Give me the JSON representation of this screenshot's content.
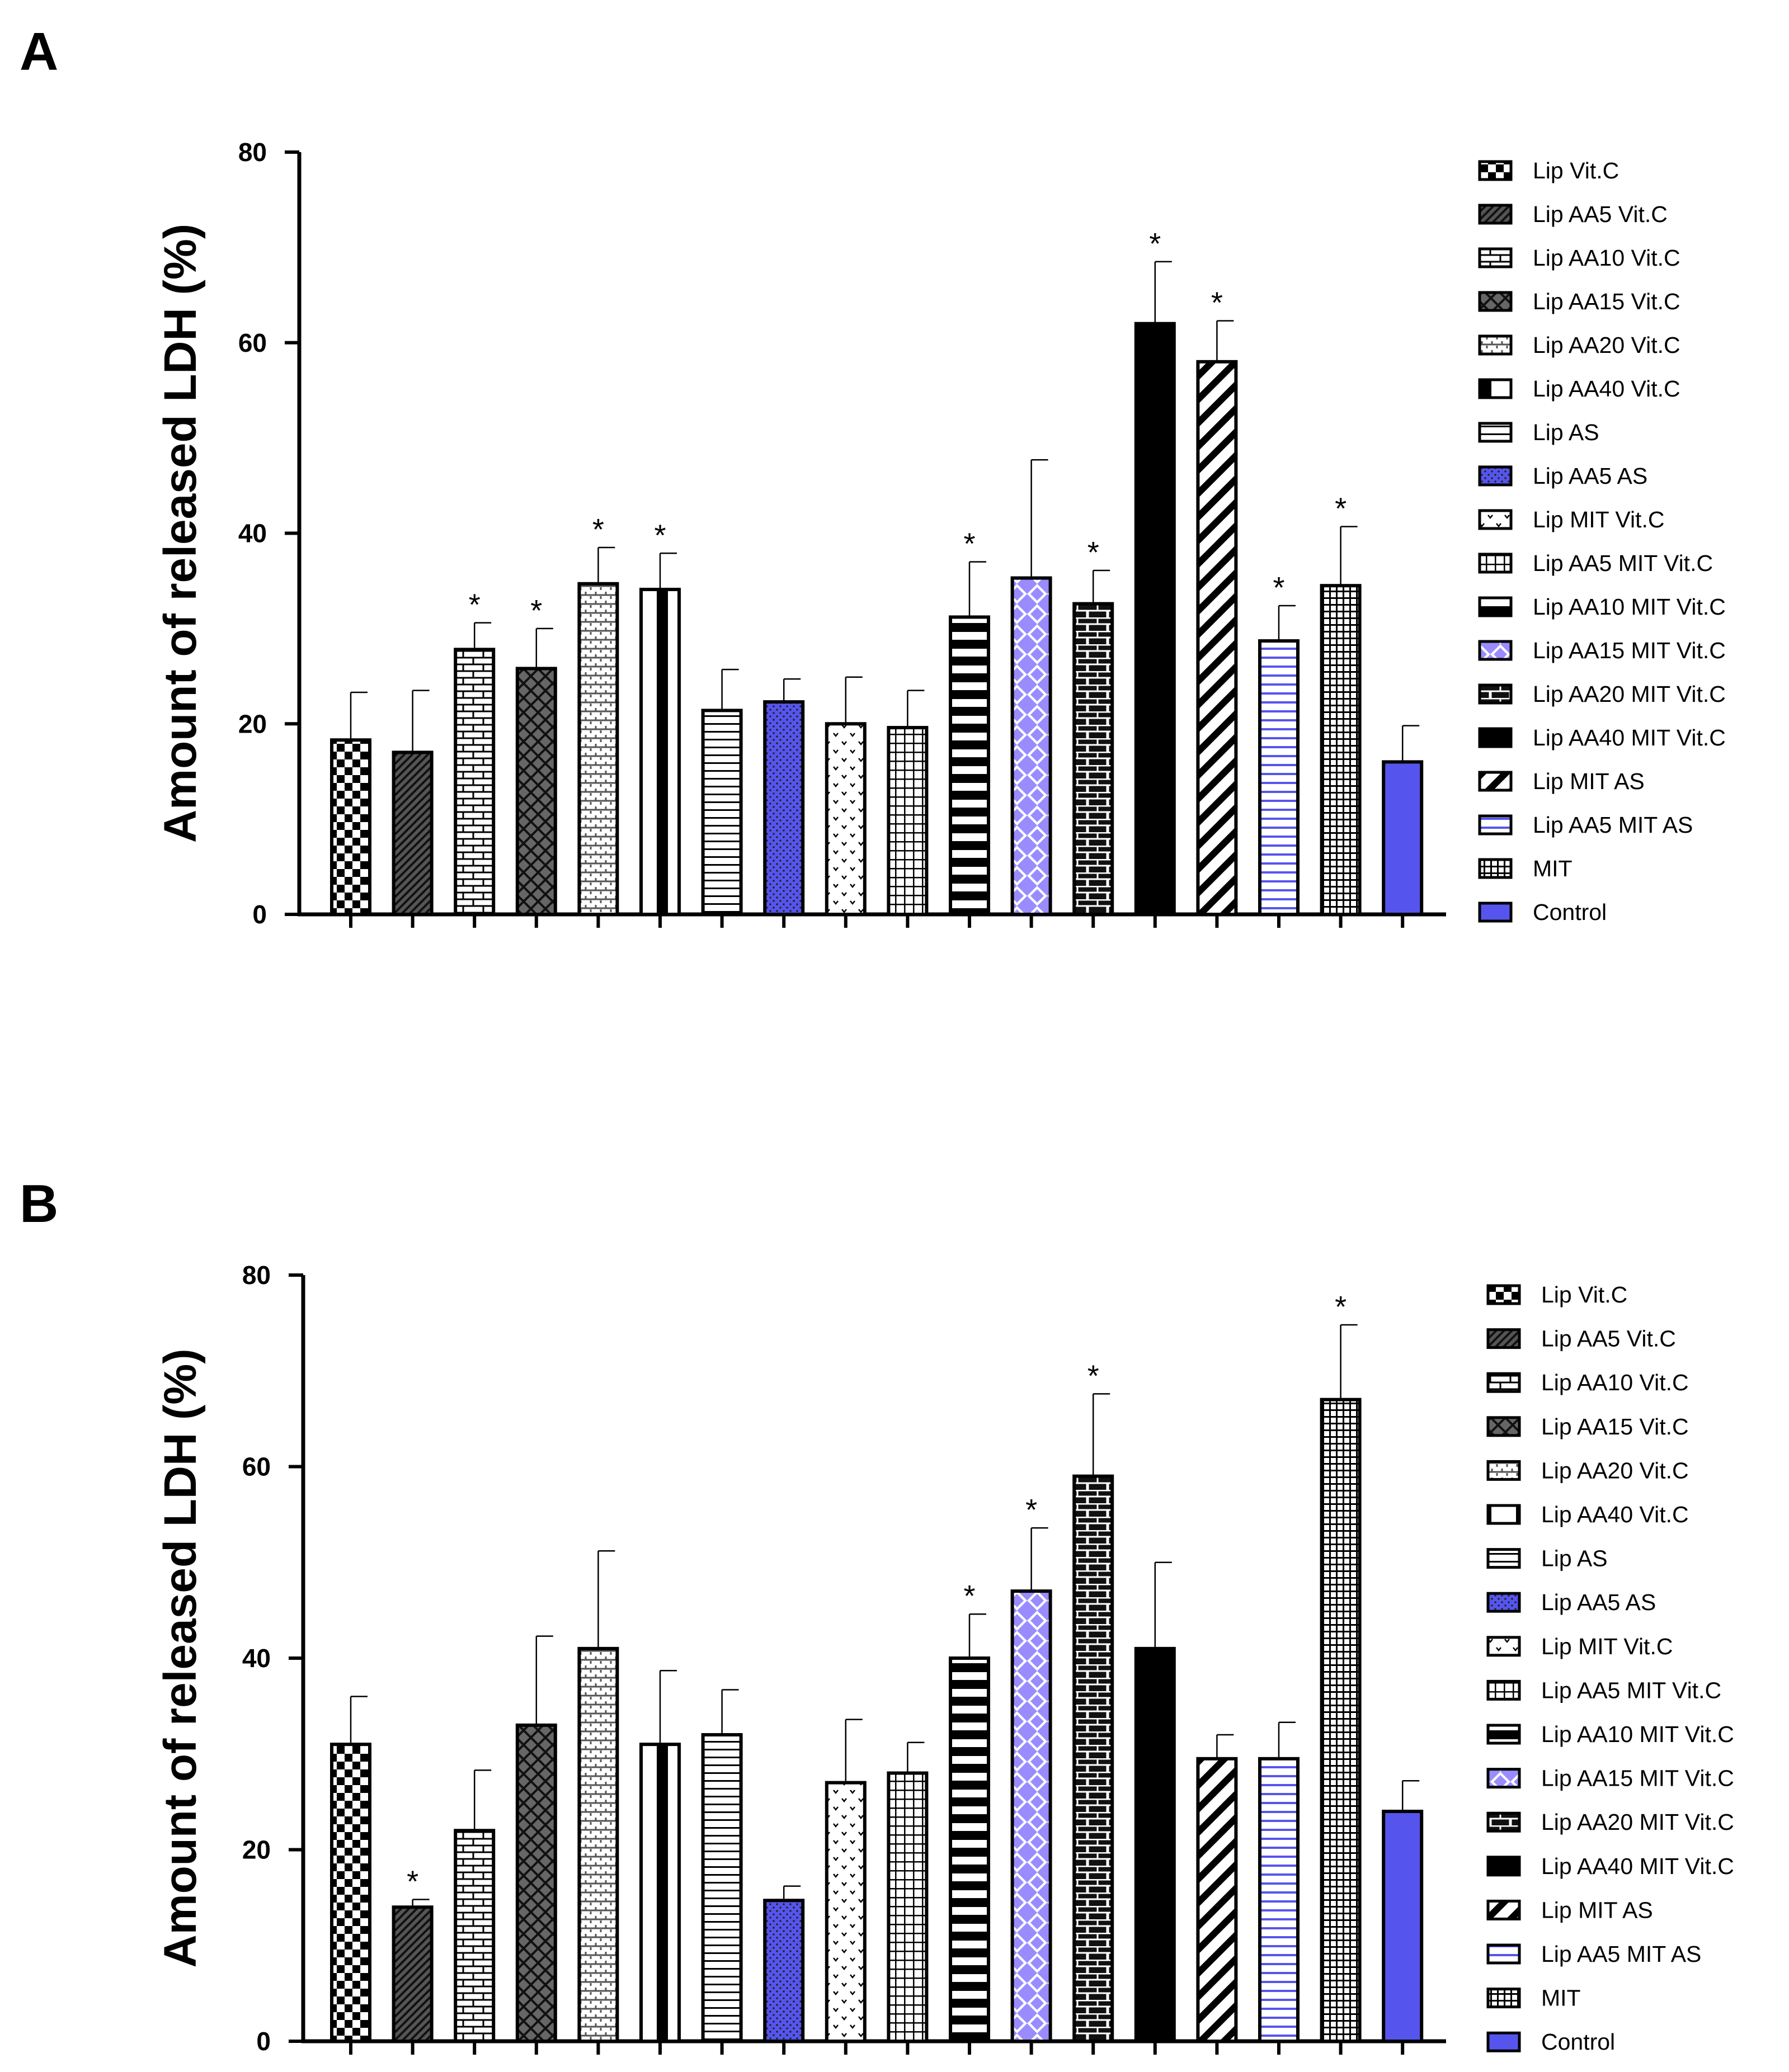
{
  "chart_data": [
    {
      "panel": "A",
      "type": "bar",
      "ylabel": "Amount of released LDH (%)",
      "ylim": [
        0,
        80
      ],
      "yticks": [
        0,
        20,
        40,
        60,
        80
      ],
      "categories": [
        "Lip Vit.C",
        "Lip AA5 Vit.C",
        "Lip AA10 Vit.C",
        "Lip AA15 Vit.C",
        "Lip AA20 Vit.C",
        "Lip AA40 Vit.C",
        "Lip AS",
        "Lip AA5 AS",
        "Lip MIT Vit.C",
        "Lip AA5 MIT Vit.C",
        "Lip AA10 MIT Vit.C",
        "Lip AA15 MIT Vit.C",
        "Lip AA20 MIT Vit.C",
        "Lip AA40 MIT Vit.C",
        "Lip MIT AS",
        "Lip AA5 MIT AS",
        "MIT",
        "Control"
      ],
      "values": [
        18.3,
        17.0,
        27.8,
        25.8,
        34.7,
        34.1,
        21.4,
        22.3,
        20.0,
        19.6,
        31.2,
        35.3,
        32.6,
        62.0,
        58.0,
        28.7,
        34.5,
        16.0
      ],
      "errors": [
        5.0,
        6.5,
        2.8,
        4.2,
        3.8,
        3.8,
        4.3,
        2.4,
        4.9,
        3.9,
        5.8,
        12.4,
        3.5,
        6.5,
        4.3,
        3.7,
        6.2,
        3.8
      ],
      "significant": [
        false,
        false,
        true,
        true,
        true,
        true,
        false,
        false,
        false,
        false,
        true,
        false,
        true,
        true,
        true,
        true,
        true,
        false
      ],
      "significance_mark": "*"
    },
    {
      "panel": "B",
      "type": "bar",
      "ylabel": "Amount of released LDH (%)",
      "ylim": [
        0,
        80
      ],
      "yticks": [
        0,
        20,
        40,
        60,
        80
      ],
      "categories": [
        "Lip Vit.C",
        "Lip AA5 Vit.C",
        "Lip AA10 Vit.C",
        "Lip AA15 Vit.C",
        "Lip AA20 Vit.C",
        "Lip AA40 Vit.C",
        "Lip AS",
        "Lip AA5 AS",
        "Lip MIT Vit.C",
        "Lip AA5 MIT Vit.C",
        "Lip AA10 MIT Vit.C",
        "Lip AA15 MIT Vit.C",
        "Lip AA20 MIT Vit.C",
        "Lip AA40 MIT Vit.C",
        "Lip MIT AS",
        "Lip AA5 MIT AS",
        "MIT",
        "Control"
      ],
      "values": [
        31.0,
        14.0,
        22.0,
        33.0,
        41.0,
        31.0,
        32.0,
        14.7,
        27.0,
        28.0,
        40.0,
        47.0,
        59.0,
        41.0,
        29.5,
        29.5,
        67.0,
        24.0
      ],
      "errors": [
        5.0,
        0.8,
        6.3,
        9.3,
        10.2,
        7.7,
        4.7,
        1.5,
        6.6,
        3.2,
        4.6,
        6.6,
        8.6,
        9.0,
        2.5,
        3.8,
        7.8,
        3.2
      ],
      "significant": [
        false,
        true,
        false,
        false,
        false,
        false,
        false,
        false,
        false,
        false,
        true,
        true,
        true,
        false,
        false,
        false,
        true,
        false
      ],
      "significance_mark": "*"
    }
  ],
  "colors": {
    "axis": "#000000",
    "purple": "#5555ee",
    "lavender": "#9a8cff"
  },
  "pattern_names": [
    "checker",
    "diag-dark",
    "brick-h",
    "argyle",
    "dash-v",
    "vert-bar",
    "horiz",
    "dots-blue",
    "dots-sparse",
    "grid",
    "horiz-thick",
    "argyle-blue",
    "brick-dark",
    "solid-black",
    "diag-stripe",
    "horiz-blue",
    "grid-dense",
    "solid-blue"
  ]
}
